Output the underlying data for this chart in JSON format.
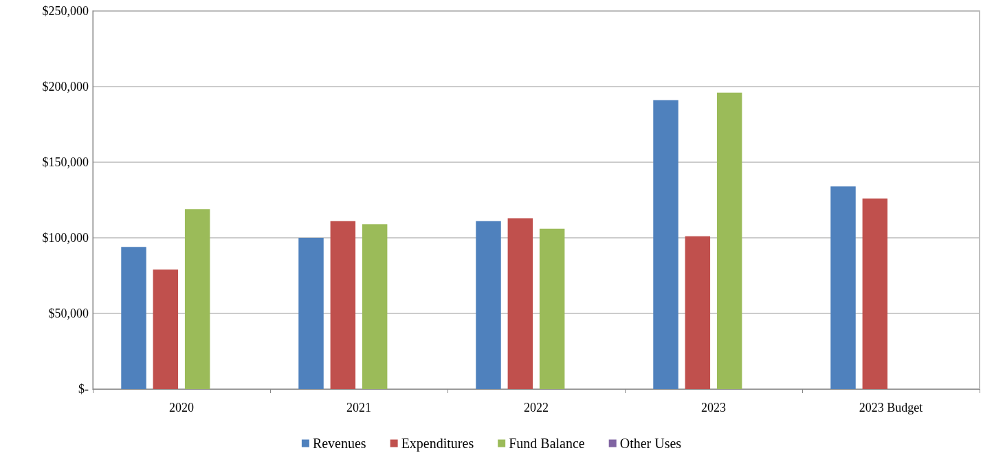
{
  "chart_data": {
    "type": "bar",
    "categories": [
      "2020",
      "2021",
      "2022",
      "2023",
      "2023 Budget"
    ],
    "series": [
      {
        "name": "Revenues",
        "color": "#4f81bd",
        "values": [
          94000,
          100000,
          111000,
          191000,
          134000
        ]
      },
      {
        "name": "Expenditures",
        "color": "#c0504d",
        "values": [
          79000,
          111000,
          113000,
          101000,
          126000
        ]
      },
      {
        "name": "Fund Balance",
        "color": "#9bbb59",
        "values": [
          119000,
          109000,
          106000,
          196000,
          null
        ]
      },
      {
        "name": "Other Uses",
        "color": "#8064a2",
        "values": [
          null,
          null,
          null,
          null,
          null
        ]
      }
    ],
    "ylim": [
      0,
      250000
    ],
    "yticks": [
      {
        "value": 0,
        "label": "$-"
      },
      {
        "value": 50000,
        "label": "$50,000"
      },
      {
        "value": 100000,
        "label": "$100,000"
      },
      {
        "value": 150000,
        "label": "$150,000"
      },
      {
        "value": 200000,
        "label": "$200,000"
      },
      {
        "value": 250000,
        "label": "$250,000"
      }
    ],
    "grid": "y",
    "legend": "bottom"
  }
}
